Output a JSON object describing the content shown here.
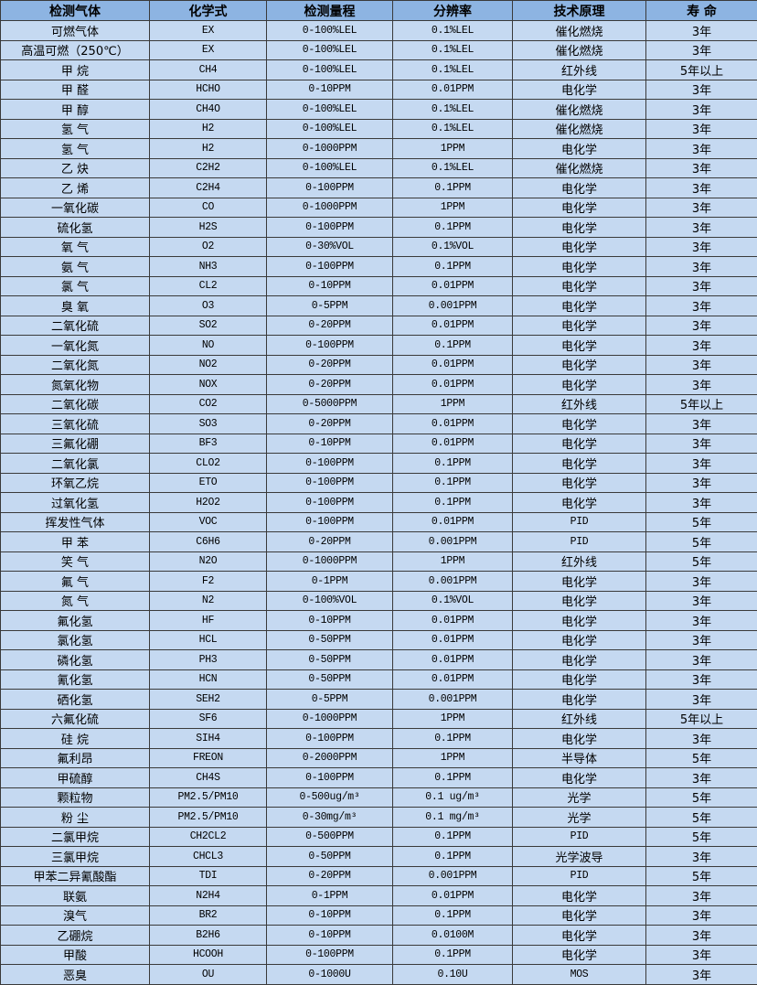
{
  "table": {
    "headers": [
      "检测气体",
      "化学式",
      "检测量程",
      "分辨率",
      "技术原理",
      "寿 命"
    ],
    "rows": [
      [
        "可燃气体",
        "EX",
        "0-100%LEL",
        "0.1%LEL",
        "催化燃烧",
        "3年"
      ],
      [
        "高温可燃（250℃）",
        "EX",
        "0-100%LEL",
        "0.1%LEL",
        "催化燃烧",
        "3年"
      ],
      [
        "甲 烷",
        "CH4",
        "0-100%LEL",
        "0.1%LEL",
        "红外线",
        "5年以上"
      ],
      [
        "甲 醛",
        "HCHO",
        "0-10PPM",
        "0.01PPM",
        "电化学",
        "3年"
      ],
      [
        "甲 醇",
        "CH4O",
        "0-100%LEL",
        "0.1%LEL",
        "催化燃烧",
        "3年"
      ],
      [
        "氢 气",
        "H2",
        "0-100%LEL",
        "0.1%LEL",
        "催化燃烧",
        "3年"
      ],
      [
        "氢 气",
        "H2",
        "0-1000PPM",
        "1PPM",
        "电化学",
        "3年"
      ],
      [
        "乙 炔",
        "C2H2",
        "0-100%LEL",
        "0.1%LEL",
        "催化燃烧",
        "3年"
      ],
      [
        "乙 烯",
        "C2H4",
        "0-100PPM",
        "0.1PPM",
        "电化学",
        "3年"
      ],
      [
        "一氧化碳",
        "CO",
        "0-1000PPM",
        "1PPM",
        "电化学",
        "3年"
      ],
      [
        "硫化氢",
        "H2S",
        "0-100PPM",
        "0.1PPM",
        "电化学",
        "3年"
      ],
      [
        "氧 气",
        "O2",
        "0-30%VOL",
        "0.1%VOL",
        "电化学",
        "3年"
      ],
      [
        "氨 气",
        "NH3",
        "0-100PPM",
        "0.1PPM",
        "电化学",
        "3年"
      ],
      [
        "氯 气",
        "CL2",
        "0-10PPM",
        "0.01PPM",
        "电化学",
        "3年"
      ],
      [
        "臭 氧",
        "O3",
        "0-5PPM",
        "0.001PPM",
        "电化学",
        "3年"
      ],
      [
        "二氧化硫",
        "SO2",
        "0-20PPM",
        "0.01PPM",
        "电化学",
        "3年"
      ],
      [
        "一氧化氮",
        "NO",
        "0-100PPM",
        "0.1PPM",
        "电化学",
        "3年"
      ],
      [
        "二氧化氮",
        "NO2",
        "0-20PPM",
        "0.01PPM",
        "电化学",
        "3年"
      ],
      [
        "氮氧化物",
        "NOX",
        "0-20PPM",
        "0.01PPM",
        "电化学",
        "3年"
      ],
      [
        "二氧化碳",
        "CO2",
        "0-5000PPM",
        "1PPM",
        "红外线",
        "5年以上"
      ],
      [
        "三氧化硫",
        "SO3",
        "0-20PPM",
        "0.01PPM",
        "电化学",
        "3年"
      ],
      [
        "三氟化硼",
        "BF3",
        "0-10PPM",
        "0.01PPM",
        "电化学",
        "3年"
      ],
      [
        "二氧化氯",
        "CLO2",
        "0-100PPM",
        "0.1PPM",
        "电化学",
        "3年"
      ],
      [
        "环氧乙烷",
        "ETO",
        "0-100PPM",
        "0.1PPM",
        "电化学",
        "3年"
      ],
      [
        "过氧化氢",
        "H2O2",
        "0-100PPM",
        "0.1PPM",
        "电化学",
        "3年"
      ],
      [
        "挥发性气体",
        "VOC",
        "0-100PPM",
        "0.01PPM",
        "PID",
        "5年"
      ],
      [
        "甲 苯",
        "C6H6",
        "0-20PPM",
        "0.001PPM",
        "PID",
        "5年"
      ],
      [
        "笑 气",
        "N2O",
        "0-1000PPM",
        "1PPM",
        "红外线",
        "5年"
      ],
      [
        "氟 气",
        "F2",
        "0-1PPM",
        "0.001PPM",
        "电化学",
        "3年"
      ],
      [
        "氮 气",
        "N2",
        "0-100%VOL",
        "0.1%VOL",
        "电化学",
        "3年"
      ],
      [
        "氟化氢",
        "HF",
        "0-10PPM",
        "0.01PPM",
        "电化学",
        "3年"
      ],
      [
        "氯化氢",
        "HCL",
        "0-50PPM",
        "0.01PPM",
        "电化学",
        "3年"
      ],
      [
        "磷化氢",
        "PH3",
        "0-50PPM",
        "0.01PPM",
        "电化学",
        "3年"
      ],
      [
        "氰化氢",
        "HCN",
        "0-50PPM",
        "0.01PPM",
        "电化学",
        "3年"
      ],
      [
        "硒化氢",
        "SEH2",
        "0-5PPM",
        "0.001PPM",
        "电化学",
        "3年"
      ],
      [
        "六氟化硫",
        "SF6",
        "0-1000PPM",
        "1PPM",
        "红外线",
        "5年以上"
      ],
      [
        "硅 烷",
        "SIH4",
        "0-100PPM",
        "0.1PPM",
        "电化学",
        "3年"
      ],
      [
        "氟利昂",
        "FREON",
        "0-2000PPM",
        "1PPM",
        "半导体",
        "5年"
      ],
      [
        "甲硫醇",
        "CH4S",
        "0-100PPM",
        "0.1PPM",
        "电化学",
        "3年"
      ],
      [
        "颗粒物",
        "PM2.5/PM10",
        "0-500ug/m³",
        "0.1 ug/m³",
        "光学",
        "5年"
      ],
      [
        "粉 尘",
        "PM2.5/PM10",
        "0-30mg/m³",
        "0.1 mg/m³",
        "光学",
        "5年"
      ],
      [
        "二氯甲烷",
        "CH2CL2",
        "0-500PPM",
        "0.1PPM",
        "PID",
        "5年"
      ],
      [
        "三氯甲烷",
        "CHCL3",
        "0-50PPM",
        "0.1PPM",
        "光学波导",
        "3年"
      ],
      [
        "甲苯二异氰酸酯",
        "TDI",
        "0-20PPM",
        "0.001PPM",
        "PID",
        "5年"
      ],
      [
        "联氨",
        "N2H4",
        "0-1PPM",
        "0.01PPM",
        "电化学",
        "3年"
      ],
      [
        "溴气",
        "BR2",
        "0-10PPM",
        "0.1PPM",
        "电化学",
        "3年"
      ],
      [
        "乙硼烷",
        "B2H6",
        "0-10PPM",
        "0.0100M",
        "电化学",
        "3年"
      ],
      [
        "甲酸",
        "HCOOH",
        "0-100PPM",
        "0.1PPM",
        "电化学",
        "3年"
      ],
      [
        "恶臭",
        "OU",
        "0-1000U",
        "0.10U",
        "MOS",
        "3年"
      ]
    ]
  },
  "colors": {
    "header_bg": "#8db4e2",
    "row_bg": "#c5d9f1",
    "border": "#3a3a3a"
  }
}
